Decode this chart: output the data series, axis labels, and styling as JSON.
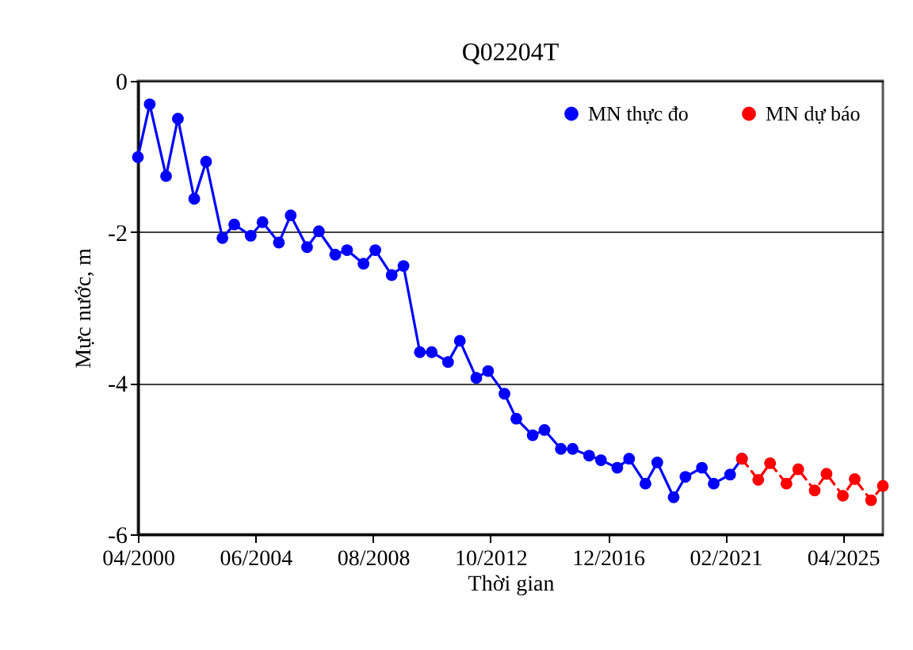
{
  "chart_data": {
    "type": "line",
    "title": "Q02204T",
    "xlabel": "Thời gian",
    "ylabel": "Mực nước, m",
    "xlim": [
      "2000-04",
      "2026-09"
    ],
    "xticks": [
      {
        "value": "2000-04",
        "label": "04/2000"
      },
      {
        "value": "2004-06",
        "label": "06/2004"
      },
      {
        "value": "2008-08",
        "label": "08/2008"
      },
      {
        "value": "2012-10",
        "label": "10/2012"
      },
      {
        "value": "2016-12",
        "label": "12/2016"
      },
      {
        "value": "2021-02",
        "label": "02/2021"
      },
      {
        "value": "2025-04",
        "label": "04/2025"
      }
    ],
    "ylim": [
      -6,
      0
    ],
    "yticks": [
      -6,
      -4,
      -2,
      0
    ],
    "grid": "y",
    "legend": "top right",
    "marker": "circle",
    "series": [
      {
        "name": "MN thực đo",
        "color": "#0000ff",
        "line_style": "solid",
        "x": [
          "2000-04",
          "2000-09",
          "2001-04",
          "2001-09",
          "2002-04",
          "2002-09",
          "2003-04",
          "2003-09",
          "2004-04",
          "2004-09",
          "2005-04",
          "2005-09",
          "2006-04",
          "2006-09",
          "2007-04",
          "2007-09",
          "2008-04",
          "2008-09",
          "2009-04",
          "2009-09",
          "2010-04",
          "2010-09",
          "2011-04",
          "2011-09",
          "2012-04",
          "2012-09",
          "2013-04",
          "2013-09",
          "2014-04",
          "2014-09",
          "2015-04",
          "2015-09",
          "2016-04",
          "2016-09",
          "2017-04",
          "2017-09",
          "2018-04",
          "2018-09",
          "2019-04",
          "2019-09",
          "2020-04",
          "2020-09",
          "2021-04",
          "2021-09"
        ],
        "values": [
          -1.01,
          -0.31,
          -1.26,
          -0.5,
          -1.56,
          -1.07,
          -2.08,
          -1.9,
          -2.05,
          -1.87,
          -2.14,
          -1.78,
          -2.2,
          -1.99,
          -2.3,
          -2.24,
          -2.42,
          -2.24,
          -2.57,
          -2.45,
          -3.59,
          -3.59,
          -3.72,
          -3.44,
          -3.93,
          -3.84,
          -4.14,
          -4.47,
          -4.69,
          -4.62,
          -4.87,
          -4.87,
          -4.96,
          -5.02,
          -5.12,
          -5.0,
          -5.33,
          -5.05,
          -5.51,
          -5.24,
          -5.12,
          -5.33,
          -5.21,
          -5.0
        ]
      },
      {
        "name": "MN dự báo",
        "color": "#ff0000",
        "line_style": "dashed",
        "x": [
          "2021-09",
          "2022-04",
          "2022-09",
          "2023-04",
          "2023-09",
          "2024-04",
          "2024-09",
          "2025-04",
          "2025-09",
          "2026-04",
          "2026-09"
        ],
        "values": [
          -5.0,
          -5.28,
          -5.06,
          -5.33,
          -5.14,
          -5.42,
          -5.2,
          -5.49,
          -5.27,
          -5.55,
          -5.36
        ]
      }
    ]
  }
}
